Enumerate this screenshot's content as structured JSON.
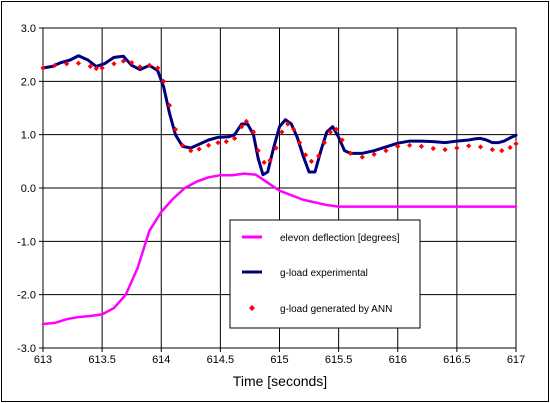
{
  "chart_data": {
    "type": "line",
    "title": "",
    "xlabel": "Time [seconds]",
    "ylabel": "",
    "xlim": [
      613,
      617
    ],
    "ylim": [
      -3.0,
      3.0
    ],
    "x_ticks": [
      "613",
      "613.5",
      "614",
      "614.5",
      "615",
      "615.5",
      "616",
      "616.5",
      "617"
    ],
    "y_ticks": [
      "3.0",
      "2.0",
      "1.0",
      "0.0",
      "-1.0",
      "-2.0",
      "-3.0"
    ],
    "grid": true,
    "legend_position": "lower-right-inside",
    "series": [
      {
        "name": "elevon deflection [degrees]",
        "style": "line",
        "color": "#ff00ff",
        "points": [
          [
            613.0,
            -2.55
          ],
          [
            613.1,
            -2.53
          ],
          [
            613.2,
            -2.46
          ],
          [
            613.3,
            -2.42
          ],
          [
            613.4,
            -2.4
          ],
          [
            613.5,
            -2.37
          ],
          [
            613.6,
            -2.25
          ],
          [
            613.7,
            -2.0
          ],
          [
            613.8,
            -1.5
          ],
          [
            613.9,
            -0.8
          ],
          [
            614.0,
            -0.45
          ],
          [
            614.1,
            -0.2
          ],
          [
            614.2,
            0.0
          ],
          [
            614.3,
            0.12
          ],
          [
            614.4,
            0.2
          ],
          [
            614.5,
            0.24
          ],
          [
            614.6,
            0.24
          ],
          [
            614.7,
            0.27
          ],
          [
            614.8,
            0.25
          ],
          [
            614.9,
            0.1
          ],
          [
            615.0,
            -0.05
          ],
          [
            615.2,
            -0.22
          ],
          [
            615.4,
            -0.32
          ],
          [
            615.5,
            -0.35
          ],
          [
            616.0,
            -0.35
          ],
          [
            616.5,
            -0.35
          ],
          [
            617.0,
            -0.35
          ]
        ]
      },
      {
        "name": "g-load experimental",
        "style": "line",
        "color": "#00007f",
        "points": [
          [
            613.0,
            2.25
          ],
          [
            613.08,
            2.28
          ],
          [
            613.15,
            2.35
          ],
          [
            613.23,
            2.4
          ],
          [
            613.3,
            2.48
          ],
          [
            613.38,
            2.4
          ],
          [
            613.45,
            2.28
          ],
          [
            613.52,
            2.33
          ],
          [
            613.6,
            2.45
          ],
          [
            613.68,
            2.47
          ],
          [
            613.75,
            2.3
          ],
          [
            613.82,
            2.22
          ],
          [
            613.9,
            2.3
          ],
          [
            613.97,
            2.2
          ],
          [
            614.02,
            1.9
          ],
          [
            614.07,
            1.4
          ],
          [
            614.12,
            1.0
          ],
          [
            614.18,
            0.78
          ],
          [
            614.25,
            0.75
          ],
          [
            614.32,
            0.82
          ],
          [
            614.4,
            0.9
          ],
          [
            614.48,
            0.95
          ],
          [
            614.57,
            0.96
          ],
          [
            614.62,
            1.0
          ],
          [
            614.68,
            1.2
          ],
          [
            614.73,
            1.2
          ],
          [
            614.78,
            1.0
          ],
          [
            614.82,
            0.55
          ],
          [
            614.86,
            0.25
          ],
          [
            614.9,
            0.3
          ],
          [
            614.95,
            0.75
          ],
          [
            615.0,
            1.15
          ],
          [
            615.05,
            1.28
          ],
          [
            615.1,
            1.2
          ],
          [
            615.15,
            0.95
          ],
          [
            615.2,
            0.6
          ],
          [
            615.25,
            0.3
          ],
          [
            615.3,
            0.3
          ],
          [
            615.35,
            0.7
          ],
          [
            615.4,
            1.05
          ],
          [
            615.45,
            1.15
          ],
          [
            615.5,
            0.95
          ],
          [
            615.55,
            0.7
          ],
          [
            615.6,
            0.65
          ],
          [
            615.7,
            0.65
          ],
          [
            615.8,
            0.7
          ],
          [
            615.9,
            0.77
          ],
          [
            616.0,
            0.84
          ],
          [
            616.1,
            0.88
          ],
          [
            616.2,
            0.88
          ],
          [
            616.3,
            0.87
          ],
          [
            616.4,
            0.85
          ],
          [
            616.5,
            0.88
          ],
          [
            616.6,
            0.9
          ],
          [
            616.65,
            0.92
          ],
          [
            616.7,
            0.93
          ],
          [
            616.75,
            0.9
          ],
          [
            616.8,
            0.85
          ],
          [
            616.85,
            0.85
          ],
          [
            616.9,
            0.88
          ],
          [
            616.95,
            0.94
          ],
          [
            617.0,
            0.99
          ]
        ]
      },
      {
        "name": "g-load generated by ANN",
        "style": "markers",
        "color": "#ff0000",
        "points": [
          [
            613.0,
            2.25
          ],
          [
            613.1,
            2.3
          ],
          [
            613.2,
            2.33
          ],
          [
            613.3,
            2.34
          ],
          [
            613.4,
            2.28
          ],
          [
            613.45,
            2.24
          ],
          [
            613.5,
            2.25
          ],
          [
            613.6,
            2.33
          ],
          [
            613.68,
            2.38
          ],
          [
            613.75,
            2.35
          ],
          [
            613.82,
            2.27
          ],
          [
            613.9,
            2.3
          ],
          [
            613.97,
            2.25
          ],
          [
            614.02,
            2.0
          ],
          [
            614.07,
            1.55
          ],
          [
            614.12,
            1.1
          ],
          [
            614.18,
            0.8
          ],
          [
            614.25,
            0.7
          ],
          [
            614.32,
            0.73
          ],
          [
            614.4,
            0.8
          ],
          [
            614.48,
            0.85
          ],
          [
            614.55,
            0.87
          ],
          [
            614.62,
            0.93
          ],
          [
            614.68,
            1.15
          ],
          [
            614.72,
            1.25
          ],
          [
            614.78,
            1.05
          ],
          [
            614.82,
            0.7
          ],
          [
            614.87,
            0.48
          ],
          [
            614.92,
            0.52
          ],
          [
            614.97,
            0.75
          ],
          [
            615.02,
            1.05
          ],
          [
            615.07,
            1.2
          ],
          [
            615.12,
            1.1
          ],
          [
            615.17,
            0.85
          ],
          [
            615.22,
            0.62
          ],
          [
            615.27,
            0.5
          ],
          [
            615.33,
            0.6
          ],
          [
            615.38,
            0.85
          ],
          [
            615.43,
            1.05
          ],
          [
            615.48,
            1.1
          ],
          [
            615.53,
            0.9
          ],
          [
            615.6,
            0.65
          ],
          [
            615.7,
            0.58
          ],
          [
            615.8,
            0.63
          ],
          [
            615.9,
            0.7
          ],
          [
            616.0,
            0.78
          ],
          [
            616.1,
            0.8
          ],
          [
            616.2,
            0.78
          ],
          [
            616.3,
            0.74
          ],
          [
            616.4,
            0.72
          ],
          [
            616.5,
            0.75
          ],
          [
            616.6,
            0.79
          ],
          [
            616.7,
            0.77
          ],
          [
            616.8,
            0.72
          ],
          [
            616.88,
            0.7
          ],
          [
            616.95,
            0.76
          ],
          [
            617.0,
            0.83
          ]
        ]
      }
    ]
  }
}
